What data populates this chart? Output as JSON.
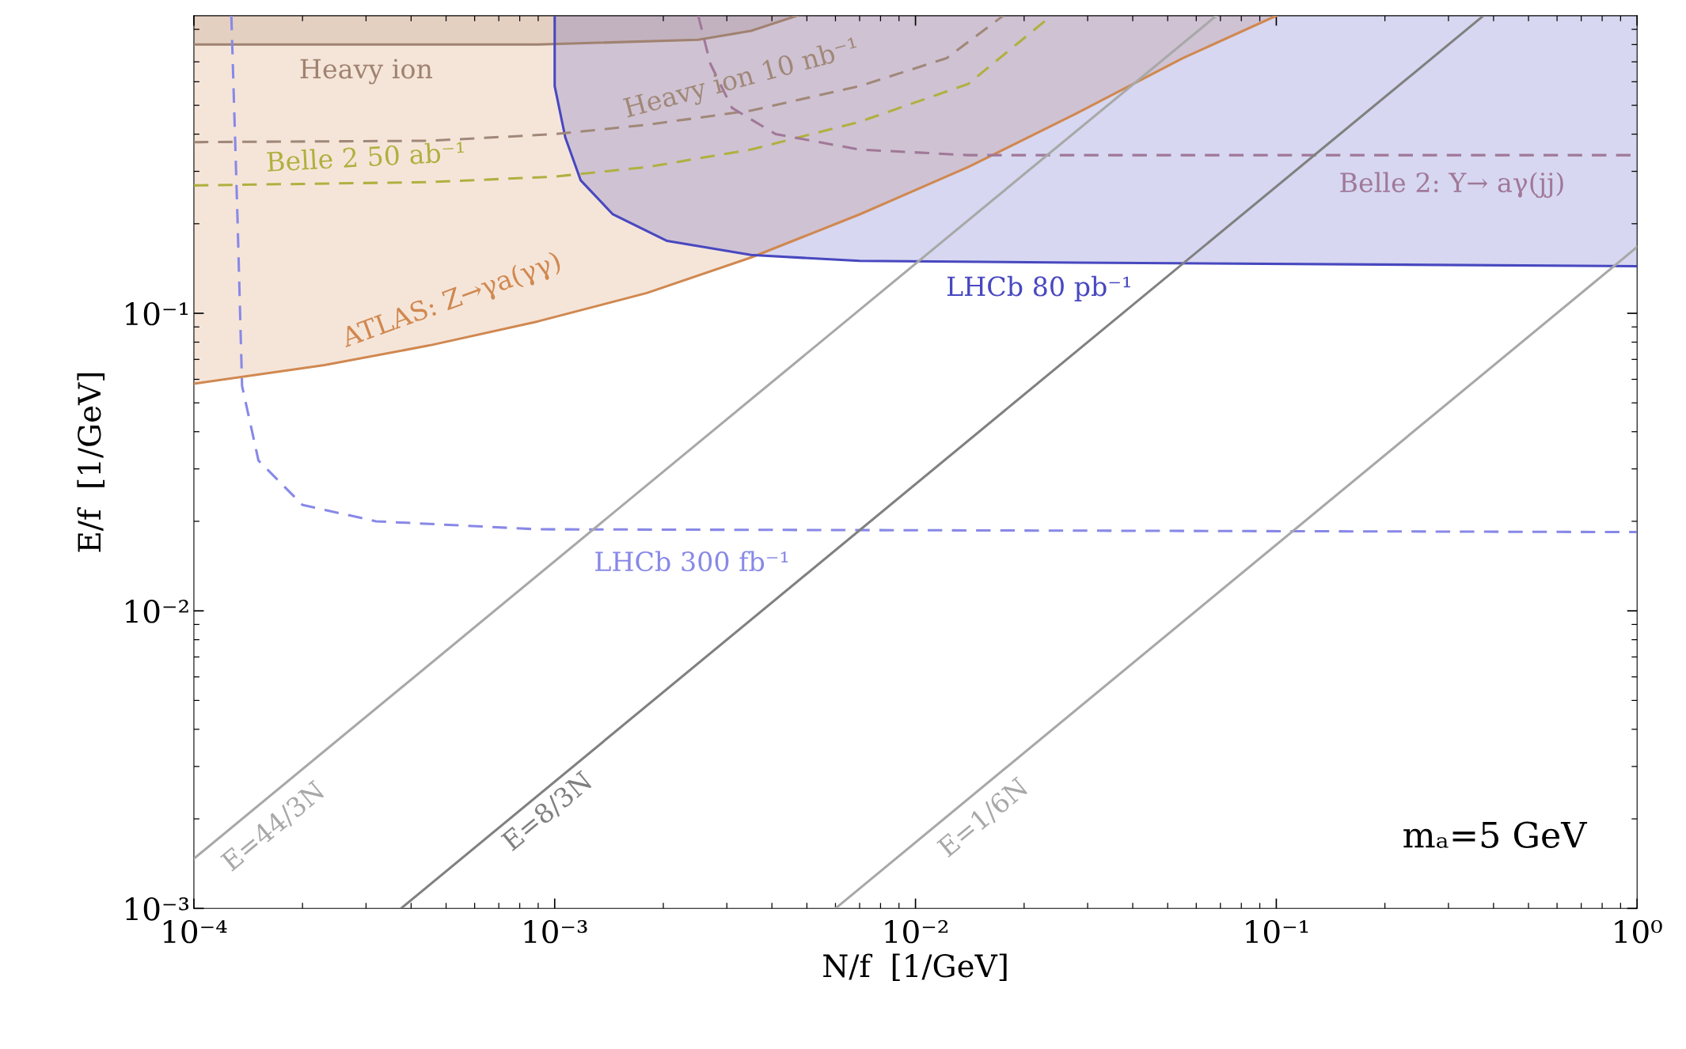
{
  "chart_data": {
    "type": "line",
    "xlabel": "N/f  [1/GeV]",
    "ylabel": "E/f  [1/GeV]",
    "log": "xy",
    "grid": false,
    "legend": false,
    "xlim": [
      0.0001,
      1
    ],
    "ylim": [
      0.001,
      1
    ],
    "xticks": [
      {
        "value": 0.0001,
        "label": "10⁻⁴"
      },
      {
        "value": 0.001,
        "label": "10⁻³"
      },
      {
        "value": 0.01,
        "label": "10⁻²"
      },
      {
        "value": 0.1,
        "label": "10⁻¹"
      },
      {
        "value": 1,
        "label": "10⁰"
      }
    ],
    "yticks": [
      {
        "value": 0.001,
        "label": "10⁻³"
      },
      {
        "value": 0.01,
        "label": "10⁻²"
      },
      {
        "value": 0.1,
        "label": "10⁻¹"
      }
    ],
    "annotations": [
      "mₐ=5 GeV"
    ],
    "series": [
      {
        "name": "Heavy ion",
        "color": "#a08270",
        "x": [
          0.0001,
          0.0009,
          0.0025,
          0.0035,
          0.0047
        ],
        "values": [
          0.8,
          0.8,
          0.83,
          0.89,
          1.0
        ],
        "lower": [
          0.8,
          0.8,
          0.83,
          0.89,
          1.0
        ],
        "upper": [
          1,
          1,
          1,
          1,
          1
        ]
      },
      {
        "name": "ATLAS: Z→γa(γγ)",
        "color": "#d08850",
        "x": [
          0.0001,
          0.00023,
          0.00045,
          0.0009,
          0.0018,
          0.0035,
          0.007,
          0.014,
          0.028,
          0.055,
          0.1
        ],
        "values": [
          0.058,
          0.067,
          0.078,
          0.094,
          0.117,
          0.154,
          0.215,
          0.31,
          0.47,
          0.72,
          1.0
        ],
        "lower": [
          0.058,
          0.067,
          0.078,
          0.094,
          0.117,
          0.154,
          0.215,
          0.31,
          0.47,
          0.72,
          1.0
        ],
        "upper": [
          1,
          1,
          1,
          1,
          1,
          1,
          1,
          1,
          1,
          1,
          1
        ]
      },
      {
        "name": "LHCb 80 pb⁻¹",
        "color": "#4848c0",
        "x": [
          0.001,
          0.001,
          0.00107,
          0.00118,
          0.00145,
          0.00205,
          0.0035,
          0.007,
          0.028,
          1
        ],
        "values": [
          1.0,
          0.58,
          0.39,
          0.28,
          0.215,
          0.175,
          0.157,
          0.15,
          0.148,
          0.144
        ],
        "lower": [
          1.0,
          0.58,
          0.39,
          0.28,
          0.215,
          0.175,
          0.157,
          0.15,
          0.148,
          0.144
        ],
        "upper": [
          1,
          1,
          1,
          1,
          1,
          1,
          1,
          1,
          1,
          1
        ]
      },
      {
        "name": "LHCb 300 fb⁻¹",
        "line_style": "dashed",
        "color": "#8888e8",
        "x": [
          0.000127,
          0.000132,
          0.000136,
          0.000151,
          0.0002,
          0.00032,
          0.0009,
          1
        ],
        "values": [
          1.0,
          0.215,
          0.057,
          0.032,
          0.0227,
          0.02,
          0.0188,
          0.0184
        ]
      },
      {
        "name": "Belle 2 50 ab⁻¹",
        "line_style": "dashed",
        "color": "#b0b040",
        "x": [
          0.0001,
          0.00045,
          0.001,
          0.0018,
          0.0035,
          0.007,
          0.014,
          0.0238
        ],
        "values": [
          0.269,
          0.276,
          0.288,
          0.31,
          0.355,
          0.44,
          0.59,
          1.0
        ]
      },
      {
        "name": "Heavy ion 10 nb⁻¹",
        "line_style": "dashed",
        "color": "#a08878",
        "x": [
          0.0001,
          0.00045,
          0.001,
          0.0018,
          0.0035,
          0.007,
          0.0122,
          0.0175
        ],
        "values": [
          0.376,
          0.38,
          0.4,
          0.43,
          0.48,
          0.58,
          0.72,
          1.0
        ]
      },
      {
        "name": "Belle 2: Υ→ aγ(jj)",
        "line_style": "dashed",
        "color": "#a07898",
        "x": [
          0.0025,
          0.0027,
          0.0031,
          0.0041,
          0.007,
          0.014,
          1
        ],
        "values": [
          1.0,
          0.69,
          0.49,
          0.4,
          0.355,
          0.34,
          0.34
        ]
      },
      {
        "name": "E=44/3N",
        "line_style": "solid",
        "color": "#a8a8a8",
        "x": [
          0.0001,
          0.0682
        ],
        "values": [
          0.00147,
          1.0
        ]
      },
      {
        "name": "E=8/3N",
        "line_style": "solid",
        "color": "#808080",
        "x": [
          0.000375,
          0.375
        ],
        "values": [
          0.001,
          1.0
        ]
      },
      {
        "name": "E=1/6N",
        "line_style": "solid",
        "color": "#a8a8a8",
        "x": [
          0.006,
          1
        ],
        "values": [
          0.001,
          0.167
        ]
      }
    ]
  }
}
